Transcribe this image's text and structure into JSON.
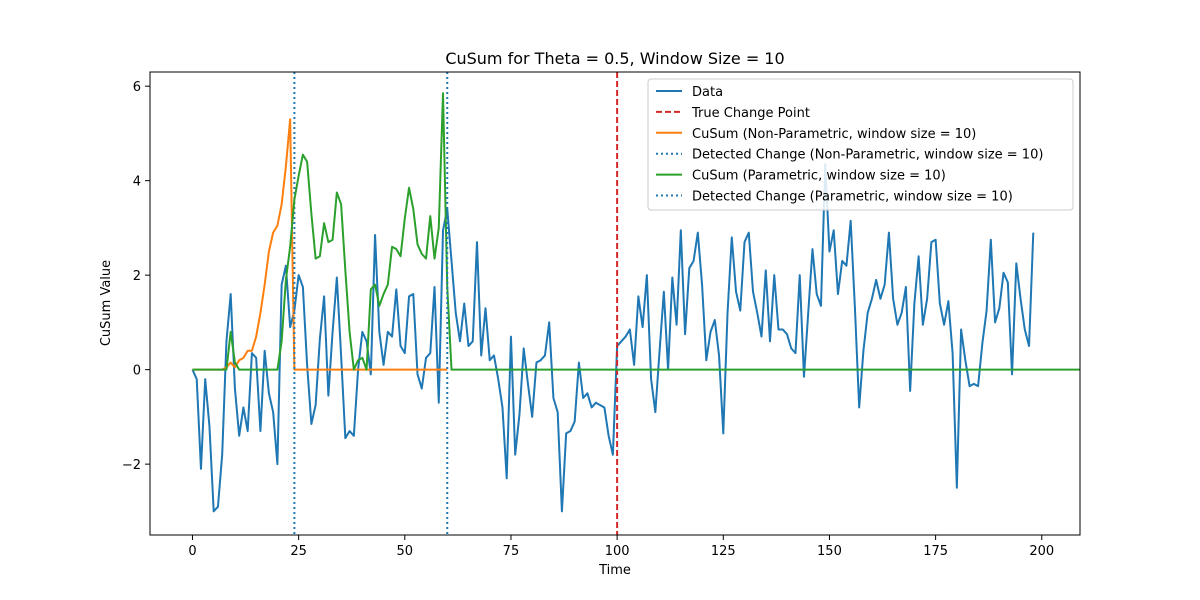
{
  "chart_data": {
    "type": "line",
    "title": "CuSum for Theta = 0.5, Window Size = 10",
    "xlabel": "Time",
    "ylabel": "CuSum Value",
    "xlim": [
      -10,
      209
    ],
    "ylim": [
      -3.5,
      6.3
    ],
    "xticks": [
      0,
      25,
      50,
      75,
      100,
      125,
      150,
      175,
      200
    ],
    "yticks": [
      -2,
      0,
      2,
      4,
      6
    ],
    "grid": false,
    "legend_position": "top-right",
    "series": [
      {
        "name": "Data",
        "kind": "line",
        "color": "#1f77b4",
        "x_start": 0,
        "values": [
          0,
          -0.2,
          -2.1,
          -0.2,
          -1.2,
          -3.0,
          -2.9,
          -1.8,
          0.6,
          1.6,
          -0.4,
          -1.4,
          -0.8,
          -1.3,
          0.35,
          0.25,
          -1.3,
          0.4,
          -0.5,
          -0.9,
          -2.0,
          1.8,
          2.2,
          0.9,
          1.25,
          2.0,
          1.75,
          0.1,
          -1.15,
          -0.75,
          0.65,
          1.55,
          -0.55,
          0.8,
          1.95,
          0.3,
          -1.45,
          -1.3,
          -1.4,
          0.0,
          0.8,
          0.6,
          -0.1,
          2.85,
          0.8,
          0.1,
          0.8,
          0.7,
          1.7,
          0.5,
          0.35,
          1.55,
          1.6,
          -0.1,
          -0.4,
          0.25,
          0.35,
          1.75,
          -0.7,
          2.95,
          3.4,
          2.3,
          1.2,
          0.6,
          1.4,
          0.5,
          0.6,
          2.7,
          0.3,
          1.3,
          0.2,
          0.3,
          -0.2,
          -0.8,
          -2.3,
          0.7,
          -1.8,
          -0.95,
          0.45,
          -0.3,
          -1.0,
          0.15,
          0.2,
          0.3,
          1.0,
          -0.6,
          -0.9,
          -3.0,
          -1.35,
          -1.3,
          -1.1,
          0.15,
          -0.6,
          -0.5,
          -0.8,
          -0.7,
          -0.75,
          -0.8,
          -1.4,
          -1.8,
          0.5,
          0.6,
          0.7,
          0.85,
          0.1,
          1.55,
          0.9,
          2.0,
          -0.2,
          -0.9,
          0.4,
          1.65,
          0.0,
          1.95,
          0.95,
          2.95,
          0.75,
          2.15,
          2.3,
          2.9,
          1.8,
          0.2,
          0.8,
          1.05,
          0.3,
          -1.35,
          1.2,
          2.8,
          1.65,
          1.25,
          2.7,
          2.9,
          1.65,
          1.2,
          0.7,
          2.1,
          0.6,
          2.0,
          0.85,
          0.85,
          0.75,
          0.45,
          0.35,
          2.0,
          -0.15,
          1.2,
          2.55,
          1.6,
          1.35,
          4.35,
          2.5,
          2.95,
          1.6,
          2.3,
          2.2,
          3.15,
          1.3,
          -0.8,
          0.4,
          1.2,
          1.5,
          1.9,
          1.5,
          1.8,
          2.9,
          1.5,
          0.95,
          1.2,
          1.75,
          -0.45,
          1.4,
          2.4,
          0.95,
          1.5,
          2.7,
          2.75,
          1.4,
          0.95,
          1.45,
          0.35,
          -2.5,
          0.85,
          0.2,
          -0.35,
          -0.3,
          -0.35,
          0.55,
          1.25,
          2.75,
          1.0,
          1.3,
          2.05,
          1.85,
          -0.1,
          2.25,
          1.5,
          0.85,
          0.5,
          2.9
        ]
      },
      {
        "name": "True Change Point",
        "kind": "vline",
        "x": 100,
        "color": "#d62728",
        "style": "dashed"
      },
      {
        "name": "CuSum (Non-Parametric, window size = 10)",
        "kind": "line",
        "color": "#ff7f0e",
        "x_start": 0,
        "values": [
          0,
          0,
          0,
          0,
          0,
          0,
          0,
          0,
          0.05,
          0.15,
          0.05,
          0.2,
          0.25,
          0.4,
          0.4,
          0.7,
          1.2,
          1.8,
          2.5,
          2.9,
          3.05,
          3.5,
          4.3,
          5.3,
          0,
          0,
          0,
          0,
          0,
          0,
          0,
          0,
          0,
          0,
          0,
          0,
          0,
          0,
          0,
          0,
          0,
          0,
          0,
          0,
          0,
          0,
          0,
          0,
          0,
          0,
          0,
          0,
          0,
          0,
          0,
          0,
          0,
          0,
          0,
          0,
          0
        ]
      },
      {
        "name": "Detected Change (Non-Parametric, window size = 10)",
        "kind": "vline",
        "x": 24,
        "color": "#1f77b4",
        "style": "dotted"
      },
      {
        "name": "CuSum (Parametric, window size = 10)",
        "kind": "line",
        "color": "#2ca02c",
        "x_start": 0,
        "values": [
          0,
          0,
          0,
          0,
          0,
          0,
          0,
          0,
          0,
          0.8,
          0.15,
          0,
          0,
          0,
          0,
          0,
          0,
          0,
          0,
          0,
          0,
          0.6,
          1.9,
          2.6,
          3.6,
          4.1,
          4.55,
          4.4,
          3.3,
          2.35,
          2.4,
          3.1,
          2.7,
          2.75,
          3.75,
          3.5,
          2.1,
          0.8,
          0,
          0.2,
          0.25,
          0,
          1.7,
          1.8,
          1.35,
          1.6,
          1.8,
          2.6,
          2.55,
          2.4,
          3.2,
          3.85,
          3.4,
          2.65,
          2.45,
          2.35,
          3.25,
          2.35,
          3.0,
          5.85,
          1.75,
          0,
          0,
          0,
          0,
          0,
          0,
          0,
          0,
          0,
          0,
          0,
          0,
          0,
          0,
          0,
          0,
          0,
          0,
          0,
          0,
          0,
          0,
          0,
          0,
          0,
          0,
          0,
          0,
          0,
          0,
          0,
          0,
          0,
          0,
          0,
          0,
          0,
          0,
          0,
          0,
          0,
          0,
          0,
          0,
          0,
          0,
          0,
          0,
          0,
          0,
          0,
          0,
          0,
          0,
          0,
          0,
          0,
          0,
          0,
          0,
          0,
          0,
          0,
          0,
          0,
          0,
          0,
          0,
          0,
          0,
          0,
          0,
          0,
          0,
          0,
          0,
          0,
          0,
          0,
          0,
          0,
          0,
          0,
          0,
          0,
          0,
          0,
          0,
          0,
          0,
          0,
          0,
          0,
          0,
          0,
          0,
          0,
          0,
          0,
          0,
          0,
          0,
          0,
          0,
          0,
          0,
          0,
          0,
          0,
          0,
          0,
          0,
          0,
          0,
          0,
          0,
          0,
          0,
          0,
          0,
          0,
          0,
          0,
          0,
          0,
          0,
          0,
          0,
          0,
          0,
          0,
          0,
          0,
          0,
          0,
          0,
          0,
          0,
          0,
          0,
          0,
          0,
          0,
          0,
          0,
          0,
          0,
          0,
          0,
          0,
          0
        ]
      },
      {
        "name": "Detected Change (Parametric, window size = 10)",
        "kind": "vline",
        "x": 60,
        "color": "#1f77b4",
        "style": "dotted"
      }
    ]
  }
}
